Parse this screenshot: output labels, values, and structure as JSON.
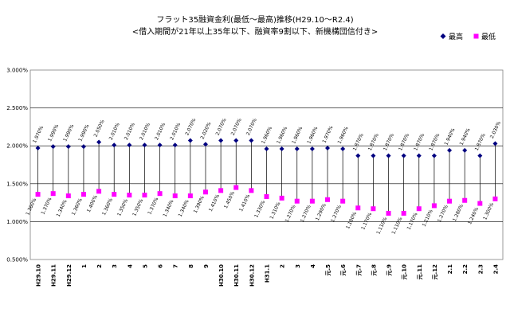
{
  "chart_data": {
    "type": "scatter",
    "title": "フラット35融資金利(最低～最高)推移(H29.10～R2.4)",
    "subtitle": "<借入期間が21年以上35年以下、融資率9割以下、新機構団信付き>",
    "categories": [
      "H29.10",
      "H29.11",
      "H29.12",
      "1",
      "2",
      "3",
      "4",
      "5",
      "6",
      "7",
      "8",
      "9",
      "H30.10",
      "H30.11",
      "H30.12",
      "H31.1",
      "2",
      "3",
      "4",
      "元.5",
      "元.6",
      "元.7",
      "元.8",
      "元.9",
      "元.10",
      "元.11",
      "元.12",
      "2.1",
      "2.2",
      "2.3",
      "2.4"
    ],
    "series": [
      {
        "name": "最高",
        "color": "#000080",
        "marker": "diamond",
        "values": [
          1.97,
          1.99,
          1.99,
          1.99,
          2.05,
          2.01,
          2.01,
          2.01,
          2.01,
          2.01,
          2.07,
          2.02,
          2.07,
          2.07,
          2.07,
          1.96,
          1.96,
          1.96,
          1.96,
          1.97,
          1.96,
          1.87,
          1.87,
          1.87,
          1.87,
          1.87,
          1.87,
          1.94,
          1.94,
          1.87,
          2.03
        ],
        "labels": [
          "1.970%",
          "1.990%",
          "1.990%",
          "1.990%",
          "2.050%",
          "2.010%",
          "2.010%",
          "2.010%",
          "2.010%",
          "2.010%",
          "2.070%",
          "2.020%",
          "2.070%",
          "2.070%",
          "2.070%",
          "1.960%",
          "1.960%",
          "1.960%",
          "1.960%",
          "1.970%",
          "1.960%",
          "1.870%",
          "1.870%",
          "1.870%",
          "1.870%",
          "1.870%",
          "1.870%",
          "1.940%",
          "1.940%",
          "1.870%",
          "2.030%"
        ]
      },
      {
        "name": "最低",
        "color": "#ff00ff",
        "marker": "square",
        "values": [
          1.36,
          1.37,
          1.34,
          1.36,
          1.4,
          1.36,
          1.35,
          1.35,
          1.37,
          1.34,
          1.34,
          1.39,
          1.41,
          1.45,
          1.41,
          1.33,
          1.31,
          1.27,
          1.27,
          1.29,
          1.27,
          1.18,
          1.17,
          1.11,
          1.11,
          1.17,
          1.21,
          1.27,
          1.28,
          1.24,
          1.3
        ],
        "labels": [
          "1.360%",
          "1.370%",
          "1.340%",
          "1.360%",
          "1.400%",
          "1.360%",
          "1.350%",
          "1.350%",
          "1.370%",
          "1.340%",
          "1.340%",
          "1.390%",
          "1.410%",
          "1.450%",
          "1.410%",
          "1.330%",
          "1.310%",
          "1.270%",
          "1.270%",
          "1.290%",
          "1.270%",
          "1.180%",
          "1.170%",
          "1.110%",
          "1.110%",
          "1.170%",
          "1.210%",
          "1.270%",
          "1.280%",
          "1.240%",
          "1.300%"
        ]
      }
    ],
    "ylim": [
      0.5,
      3.0
    ],
    "yticks": [
      0.5,
      1.0,
      1.5,
      2.0,
      2.5,
      3.0
    ],
    "ytick_labels": [
      "0.500%",
      "1.000%",
      "1.500%",
      "2.000%",
      "2.500%",
      "3.000%"
    ],
    "grid": true,
    "legend_position": "top-right"
  }
}
